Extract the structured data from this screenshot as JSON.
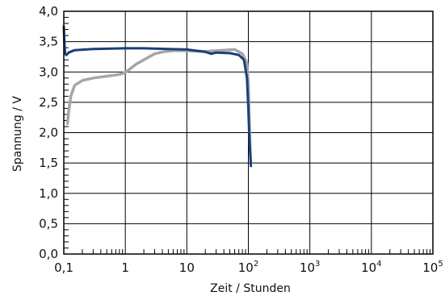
{
  "chart_data": {
    "type": "line",
    "title": "",
    "xlabel": "Zeit / Stunden",
    "ylabel": "Spannung / V",
    "xscale": "log",
    "xlim": [
      0.1,
      100000
    ],
    "ylim": [
      0,
      4
    ],
    "grid": true,
    "legend": "none",
    "x_tick_labels": [
      {
        "base": "0,1",
        "exp": ""
      },
      {
        "base": "1",
        "exp": ""
      },
      {
        "base": "10",
        "exp": ""
      },
      {
        "base": "10",
        "exp": "2"
      },
      {
        "base": "10",
        "exp": "3"
      },
      {
        "base": "10",
        "exp": "4"
      },
      {
        "base": "10",
        "exp": "5"
      }
    ],
    "y_tick_labels": [
      "0,0",
      "0,5",
      "1,0",
      "1,5",
      "2,0",
      "2,5",
      "3,0",
      "3,5",
      "4,0"
    ],
    "series": [
      {
        "color": "#a6a6a6",
        "x": [
          0.115,
          0.12,
          0.13,
          0.15,
          0.2,
          0.3,
          0.5,
          0.8,
          1.0,
          1.5,
          2,
          3,
          4,
          6,
          10,
          20,
          40,
          60,
          80,
          95,
          100,
          103,
          106,
          108,
          110
        ],
        "y": [
          2.15,
          2.35,
          2.6,
          2.78,
          2.86,
          2.9,
          2.93,
          2.96,
          2.99,
          3.13,
          3.2,
          3.3,
          3.33,
          3.35,
          3.35,
          3.34,
          3.36,
          3.37,
          3.3,
          3.15,
          2.8,
          2.3,
          1.9,
          1.65,
          1.5
        ]
      },
      {
        "color": "#1b3f7a",
        "x": [
          0.1,
          0.102,
          0.105,
          0.11,
          0.12,
          0.15,
          0.3,
          0.6,
          1,
          2,
          5,
          10,
          20,
          25,
          30,
          50,
          70,
          85,
          95,
          100,
          103,
          106,
          108,
          110
        ],
        "y": [
          3.75,
          3.5,
          3.3,
          3.28,
          3.32,
          3.36,
          3.38,
          3.385,
          3.39,
          3.39,
          3.38,
          3.37,
          3.33,
          3.3,
          3.32,
          3.31,
          3.28,
          3.2,
          2.9,
          2.4,
          2.0,
          1.75,
          1.6,
          1.45
        ]
      }
    ]
  }
}
